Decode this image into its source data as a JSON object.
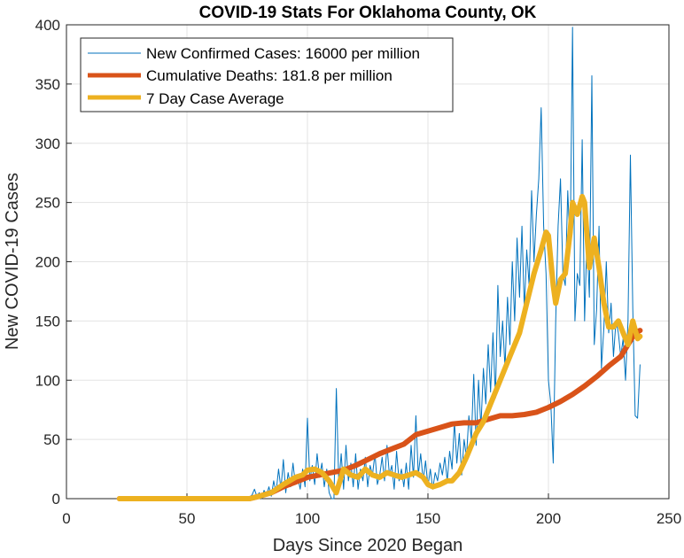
{
  "chart_data": {
    "type": "line",
    "title": "COVID-19 Stats For Oklahoma County, OK",
    "xlabel": "Days Since 2020 Began",
    "ylabel": "New COVID-19 Cases",
    "xlim": [
      0,
      250
    ],
    "ylim": [
      0,
      400
    ],
    "xticks": [
      0,
      50,
      100,
      150,
      200,
      250
    ],
    "yticks": [
      0,
      50,
      100,
      150,
      200,
      250,
      300,
      350,
      400
    ],
    "grid": true,
    "legend_position": "top-left",
    "series": [
      {
        "name": "New Confirmed Cases: 16000 per million",
        "color": "#0072BD",
        "style": "thin",
        "points": [
          [
            22,
            0
          ],
          [
            40,
            0
          ],
          [
            60,
            0
          ],
          [
            75,
            0
          ],
          [
            77,
            3
          ],
          [
            78,
            8
          ],
          [
            79,
            2
          ],
          [
            80,
            5
          ],
          [
            81,
            0
          ],
          [
            82,
            7
          ],
          [
            83,
            3
          ],
          [
            84,
            10
          ],
          [
            85,
            2
          ],
          [
            86,
            15
          ],
          [
            87,
            5
          ],
          [
            88,
            25
          ],
          [
            89,
            8
          ],
          [
            90,
            33
          ],
          [
            91,
            5
          ],
          [
            92,
            22
          ],
          [
            93,
            10
          ],
          [
            94,
            30
          ],
          [
            95,
            12
          ],
          [
            96,
            18
          ],
          [
            97,
            8
          ],
          [
            98,
            25
          ],
          [
            99,
            10
          ],
          [
            100,
            68
          ],
          [
            101,
            15
          ],
          [
            102,
            28
          ],
          [
            103,
            12
          ],
          [
            104,
            38
          ],
          [
            105,
            18
          ],
          [
            106,
            30
          ],
          [
            107,
            10
          ],
          [
            108,
            25
          ],
          [
            109,
            5
          ],
          [
            110,
            0
          ],
          [
            111,
            0
          ],
          [
            112,
            93
          ],
          [
            113,
            12
          ],
          [
            114,
            38
          ],
          [
            115,
            8
          ],
          [
            116,
            45
          ],
          [
            117,
            15
          ],
          [
            118,
            30
          ],
          [
            119,
            10
          ],
          [
            120,
            38
          ],
          [
            121,
            8
          ],
          [
            122,
            25
          ],
          [
            123,
            15
          ],
          [
            124,
            35
          ],
          [
            125,
            10
          ],
          [
            126,
            28
          ],
          [
            127,
            20
          ],
          [
            128,
            38
          ],
          [
            129,
            12
          ],
          [
            130,
            20
          ],
          [
            131,
            35
          ],
          [
            132,
            15
          ],
          [
            133,
            45
          ],
          [
            134,
            20
          ],
          [
            135,
            28
          ],
          [
            136,
            8
          ],
          [
            137,
            40
          ],
          [
            138,
            15
          ],
          [
            139,
            25
          ],
          [
            140,
            10
          ],
          [
            141,
            30
          ],
          [
            142,
            8
          ],
          [
            143,
            45
          ],
          [
            144,
            18
          ],
          [
            145,
            70
          ],
          [
            146,
            20
          ],
          [
            147,
            38
          ],
          [
            148,
            15
          ],
          [
            149,
            32
          ],
          [
            150,
            10
          ],
          [
            151,
            25
          ],
          [
            152,
            8
          ],
          [
            153,
            22
          ],
          [
            154,
            15
          ],
          [
            155,
            30
          ],
          [
            156,
            20
          ],
          [
            157,
            35
          ],
          [
            158,
            15
          ],
          [
            159,
            40
          ],
          [
            160,
            25
          ],
          [
            161,
            65
          ],
          [
            162,
            30
          ],
          [
            163,
            55
          ],
          [
            164,
            20
          ],
          [
            165,
            50
          ],
          [
            166,
            35
          ],
          [
            167,
            70
          ],
          [
            168,
            50
          ],
          [
            169,
            105
          ],
          [
            170,
            45
          ],
          [
            171,
            100
          ],
          [
            172,
            60
          ],
          [
            173,
            110
          ],
          [
            174,
            80
          ],
          [
            175,
            130
          ],
          [
            176,
            90
          ],
          [
            177,
            140
          ],
          [
            178,
            85
          ],
          [
            179,
            180
          ],
          [
            180,
            120
          ],
          [
            181,
            150
          ],
          [
            182,
            110
          ],
          [
            183,
            170
          ],
          [
            184,
            130
          ],
          [
            185,
            200
          ],
          [
            186,
            150
          ],
          [
            187,
            220
          ],
          [
            188,
            170
          ],
          [
            189,
            230
          ],
          [
            190,
            160
          ],
          [
            191,
            210
          ],
          [
            192,
            180
          ],
          [
            193,
            260
          ],
          [
            194,
            200
          ],
          [
            195,
            240
          ],
          [
            196,
            270
          ],
          [
            197,
            330
          ],
          [
            198,
            230
          ],
          [
            199,
            190
          ],
          [
            200,
            100
          ],
          [
            201,
            80
          ],
          [
            202,
            30
          ],
          [
            203,
            150
          ],
          [
            204,
            230
          ],
          [
            205,
            270
          ],
          [
            206,
            190
          ],
          [
            207,
            180
          ],
          [
            208,
            260
          ],
          [
            209,
            210
          ],
          [
            210,
            398
          ],
          [
            211,
            150
          ],
          [
            212,
            190
          ],
          [
            213,
            180
          ],
          [
            214,
            303
          ],
          [
            215,
            150
          ],
          [
            216,
            220
          ],
          [
            217,
            170
          ],
          [
            218,
            357
          ],
          [
            219,
            130
          ],
          [
            220,
            160
          ],
          [
            221,
            230
          ],
          [
            222,
            110
          ],
          [
            223,
            145
          ],
          [
            224,
            200
          ],
          [
            225,
            140
          ],
          [
            226,
            165
          ],
          [
            227,
            120
          ],
          [
            228,
            150
          ],
          [
            229,
            140
          ],
          [
            230,
            120
          ],
          [
            231,
            135
          ],
          [
            232,
            100
          ],
          [
            233,
            150
          ],
          [
            234,
            290
          ],
          [
            235,
            160
          ],
          [
            236,
            70
          ],
          [
            237,
            68
          ],
          [
            238,
            113
          ]
        ]
      },
      {
        "name": "Cumulative Deaths: 181.8 per million",
        "color": "#D95319",
        "style": "thick",
        "points": [
          [
            22,
            0
          ],
          [
            76,
            0
          ],
          [
            80,
            2
          ],
          [
            85,
            5
          ],
          [
            90,
            10
          ],
          [
            95,
            14
          ],
          [
            100,
            18
          ],
          [
            105,
            20
          ],
          [
            110,
            22
          ],
          [
            115,
            24
          ],
          [
            120,
            28
          ],
          [
            125,
            33
          ],
          [
            130,
            38
          ],
          [
            135,
            42
          ],
          [
            140,
            46
          ],
          [
            145,
            54
          ],
          [
            150,
            57
          ],
          [
            155,
            60
          ],
          [
            160,
            63
          ],
          [
            165,
            64
          ],
          [
            170,
            64
          ],
          [
            175,
            67
          ],
          [
            180,
            70
          ],
          [
            185,
            70
          ],
          [
            190,
            71
          ],
          [
            195,
            73
          ],
          [
            200,
            77
          ],
          [
            205,
            82
          ],
          [
            210,
            88
          ],
          [
            215,
            95
          ],
          [
            220,
            103
          ],
          [
            225,
            112
          ],
          [
            230,
            120
          ],
          [
            233,
            130
          ],
          [
            236,
            140
          ],
          [
            238,
            142
          ]
        ]
      },
      {
        "name": "7 Day Case Average",
        "color": "#EDB120",
        "style": "thick",
        "points": [
          [
            22,
            0
          ],
          [
            76,
            0
          ],
          [
            80,
            2
          ],
          [
            85,
            5
          ],
          [
            90,
            12
          ],
          [
            95,
            18
          ],
          [
            98,
            20
          ],
          [
            100,
            24
          ],
          [
            103,
            25
          ],
          [
            106,
            22
          ],
          [
            109,
            15
          ],
          [
            112,
            5
          ],
          [
            115,
            25
          ],
          [
            118,
            20
          ],
          [
            121,
            18
          ],
          [
            124,
            25
          ],
          [
            127,
            20
          ],
          [
            130,
            18
          ],
          [
            133,
            22
          ],
          [
            136,
            20
          ],
          [
            139,
            18
          ],
          [
            142,
            20
          ],
          [
            145,
            22
          ],
          [
            148,
            18
          ],
          [
            150,
            12
          ],
          [
            152,
            10
          ],
          [
            155,
            12
          ],
          [
            158,
            15
          ],
          [
            160,
            15
          ],
          [
            163,
            22
          ],
          [
            166,
            35
          ],
          [
            168,
            45
          ],
          [
            170,
            55
          ],
          [
            173,
            65
          ],
          [
            176,
            80
          ],
          [
            179,
            95
          ],
          [
            182,
            110
          ],
          [
            185,
            125
          ],
          [
            188,
            140
          ],
          [
            191,
            165
          ],
          [
            194,
            190
          ],
          [
            197,
            210
          ],
          [
            199,
            225
          ],
          [
            200,
            222
          ],
          [
            202,
            180
          ],
          [
            203,
            165
          ],
          [
            205,
            185
          ],
          [
            207,
            190
          ],
          [
            209,
            225
          ],
          [
            210,
            250
          ],
          [
            212,
            240
          ],
          [
            214,
            255
          ],
          [
            215,
            250
          ],
          [
            217,
            195
          ],
          [
            219,
            220
          ],
          [
            221,
            195
          ],
          [
            223,
            165
          ],
          [
            225,
            145
          ],
          [
            227,
            145
          ],
          [
            229,
            150
          ],
          [
            231,
            140
          ],
          [
            233,
            130
          ],
          [
            235,
            150
          ],
          [
            237,
            135
          ],
          [
            238,
            137
          ]
        ]
      }
    ]
  }
}
